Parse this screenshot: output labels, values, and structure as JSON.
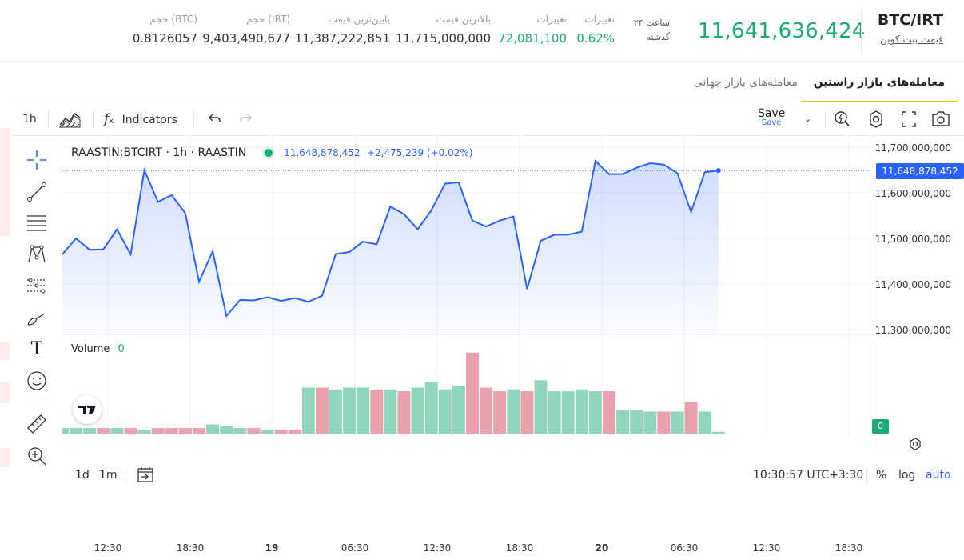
{
  "header": {
    "pair": "BTC/IRT",
    "pair_sub": "قیمت بیت کوین",
    "price": "11,641,636,424",
    "period_line1": "۲۴ ساعت",
    "period_line2": "گذشته",
    "stats": [
      {
        "label": "تغییرات",
        "value": "0.62%"
      },
      {
        "label": "تغییرات",
        "value": "72,081,100"
      },
      {
        "label": "بالاترین قیمت",
        "value": "11,715,000,000"
      },
      {
        "label": "پایین‌ترین قیمت",
        "value": "11,387,222,851"
      },
      {
        "label": "حجم (IRT)",
        "value": "9,403,490,677"
      },
      {
        "label": "حجم (BTC)",
        "value": "0.8126057"
      }
    ]
  },
  "tabs": [
    {
      "label": "معامله‌های بازار راستین"
    },
    {
      "label": "معامله‌های بازار جهانی"
    }
  ],
  "toolbar": {
    "interval": "1h",
    "indicators": "Indicators",
    "save": "Save",
    "save_sub": "Save"
  },
  "legend": {
    "symbol": "RAASTIN:BTCIRT · 1h · RAASTIN",
    "value": "11,648,878,452",
    "change": "+2,475,239 (+0.02%)",
    "volume_label": "Volume",
    "volume_value": "0"
  },
  "price_tag": "11,648,878,452",
  "volume_tag": "0",
  "bottom": {
    "range_1d": "1d",
    "range_1m": "1m",
    "time": "10:30:57 UTC+3:30",
    "pct": "%",
    "log": "log",
    "auto": "auto"
  },
  "colors": {
    "up": "#1aab76",
    "line": "#2962ff",
    "vol_up": "#8fd6bd",
    "vol_down": "#e8a1ad"
  },
  "chart_data": {
    "type": "area",
    "y_ticks": [
      "11,700,000,000",
      "11,600,000,000",
      "11,500,000,000",
      "11,400,000,000",
      "11,300,000,000"
    ],
    "ylim": [
      11300000000,
      11700000000
    ],
    "x_ticks": [
      "12:30",
      "18:30",
      "19",
      "06:30",
      "12:30",
      "18:30",
      "20",
      "06:30",
      "12:30",
      "18:30"
    ],
    "series": [
      {
        "values": [
          11465000000,
          11500000000,
          11475000000,
          11476000000,
          11520000000,
          11465000000,
          11650000000,
          11580000000,
          11595000000,
          11555000000,
          11405000000,
          11472000000,
          11330000000,
          11365000000,
          11364000000,
          11371000000,
          11363000000,
          11369000000,
          11361000000,
          11374000000,
          11466000000,
          11470000000,
          11493000000,
          11487000000,
          11570000000,
          11553000000,
          11520000000,
          11562000000,
          11620000000,
          11623000000,
          11539000000,
          11526000000,
          11539000000,
          11548000000,
          11389000000,
          11495000000,
          11508000000,
          11508000000,
          11515000000,
          11670000000,
          11641000000,
          11641000000,
          11655000000,
          11665000000,
          11662000000,
          11643000000,
          11558000000,
          11645000000,
          11648878452
        ]
      }
    ],
    "volume": [
      {
        "v": 3,
        "up": true
      },
      {
        "v": 3,
        "up": true
      },
      {
        "v": 3,
        "up": true
      },
      {
        "v": 3,
        "up": false
      },
      {
        "v": 3,
        "up": true
      },
      {
        "v": 3,
        "up": false
      },
      {
        "v": 2,
        "up": true
      },
      {
        "v": 3,
        "up": false
      },
      {
        "v": 3,
        "up": false
      },
      {
        "v": 3,
        "up": false
      },
      {
        "v": 3,
        "up": false
      },
      {
        "v": 5,
        "up": true
      },
      {
        "v": 4,
        "up": true
      },
      {
        "v": 3,
        "up": true
      },
      {
        "v": 3,
        "up": false
      },
      {
        "v": 2,
        "up": true
      },
      {
        "v": 2,
        "up": false
      },
      {
        "v": 2,
        "up": false
      },
      {
        "v": 25,
        "up": true
      },
      {
        "v": 25,
        "up": false
      },
      {
        "v": 24,
        "up": true
      },
      {
        "v": 25,
        "up": true
      },
      {
        "v": 25,
        "up": true
      },
      {
        "v": 24,
        "up": false
      },
      {
        "v": 24,
        "up": true
      },
      {
        "v": 23,
        "up": false
      },
      {
        "v": 25,
        "up": true
      },
      {
        "v": 28,
        "up": true
      },
      {
        "v": 24,
        "up": true
      },
      {
        "v": 26,
        "up": true
      },
      {
        "v": 44,
        "up": false
      },
      {
        "v": 25,
        "up": false
      },
      {
        "v": 23,
        "up": false
      },
      {
        "v": 24,
        "up": true
      },
      {
        "v": 23,
        "up": false
      },
      {
        "v": 29,
        "up": true
      },
      {
        "v": 23,
        "up": true
      },
      {
        "v": 23,
        "up": true
      },
      {
        "v": 24,
        "up": true
      },
      {
        "v": 23,
        "up": true
      },
      {
        "v": 23,
        "up": false
      },
      {
        "v": 13,
        "up": true
      },
      {
        "v": 13,
        "up": true
      },
      {
        "v": 12,
        "up": true
      },
      {
        "v": 12,
        "up": false
      },
      {
        "v": 12,
        "up": true
      },
      {
        "v": 17,
        "up": false
      },
      {
        "v": 12,
        "up": true
      },
      {
        "v": 1,
        "up": true
      }
    ]
  }
}
